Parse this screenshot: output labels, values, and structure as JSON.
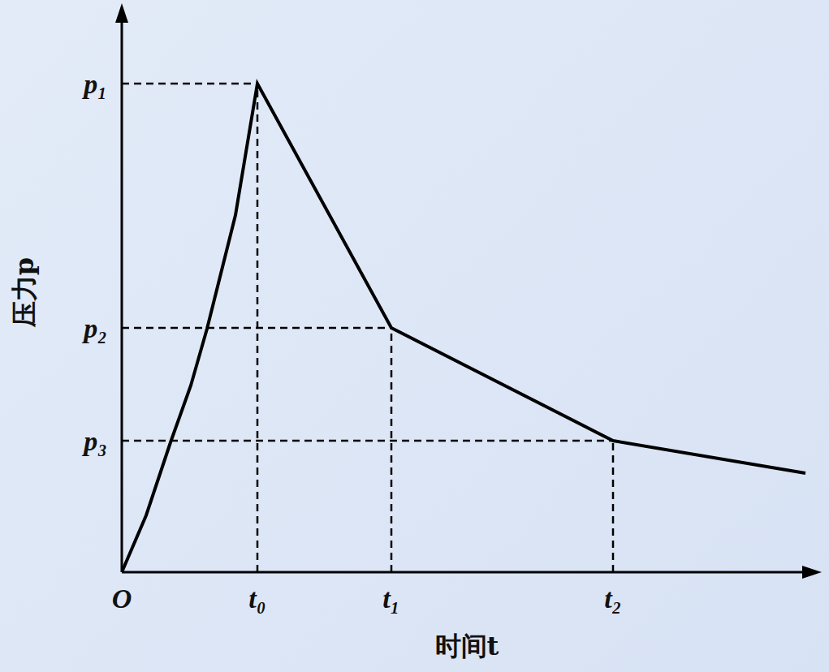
{
  "chart_data": {
    "type": "line",
    "x_label": "时间t",
    "y_label": "压力p",
    "x": [
      0,
      3,
      6,
      8.5,
      10.5,
      14,
      16.7,
      33.2,
      60.5,
      84.2
    ],
    "values": [
      0,
      7,
      16,
      23,
      30,
      44,
      60.2,
      30.1,
      16.2,
      12.2
    ],
    "color": "#000000",
    "xlim": [
      0,
      85
    ],
    "ylim": [
      0,
      69
    ],
    "xticks": [
      {
        "value": 0,
        "label": "O"
      },
      {
        "value": 16.7,
        "label": "t₀"
      },
      {
        "value": 33.2,
        "label": "t₁"
      },
      {
        "value": 60.5,
        "label": "t₂"
      }
    ],
    "yticks": [
      {
        "value": 16.2,
        "label": "p₃"
      },
      {
        "value": 30.1,
        "label": "p₂"
      },
      {
        "value": 60.2,
        "label": "p₁"
      }
    ],
    "grid": false,
    "line_style": "solid",
    "marker": "none"
  }
}
